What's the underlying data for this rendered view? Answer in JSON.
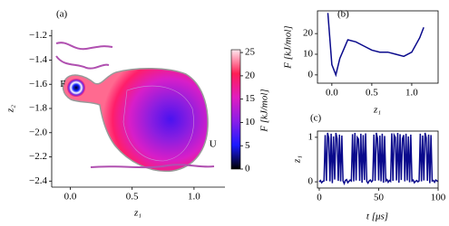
{
  "chart_data": [
    {
      "type": "contour",
      "label": "(a)",
      "xlabel": "z₁",
      "ylabel": "z₂",
      "xlim": [
        -0.15,
        1.25
      ],
      "ylim": [
        -2.45,
        -1.15
      ],
      "xticks": [
        {
          "value": 0,
          "label": "0.0"
        },
        {
          "value": 0.5,
          "label": "0.5"
        },
        {
          "value": 1,
          "label": "1.0"
        }
      ],
      "yticks": [
        {
          "value": -1.2,
          "label": "−1.2"
        },
        {
          "value": -1.4,
          "label": "−1.4"
        },
        {
          "value": -1.6,
          "label": "−1.6"
        },
        {
          "value": -1.8,
          "label": "−1.8"
        },
        {
          "value": -2.0,
          "label": "−2.0"
        },
        {
          "value": -2.2,
          "label": "−2.2"
        },
        {
          "value": -2.4,
          "label": "−2.4"
        }
      ],
      "annotations": [
        "F",
        "U"
      ],
      "colorbar": {
        "label": "F [kJ/mol]",
        "lim": [
          0,
          25.6
        ],
        "ticks": [
          0,
          5,
          10,
          15,
          20,
          25
        ]
      }
    },
    {
      "type": "line",
      "label": "(b)",
      "xlabel": "z₁",
      "ylabel": "F [kJ/mol]",
      "color": "#0a0a8c",
      "x": [
        -0.05,
        0.0,
        0.05,
        0.1,
        0.2,
        0.3,
        0.4,
        0.5,
        0.6,
        0.7,
        0.8,
        0.9,
        1.0,
        1.1,
        1.15
      ],
      "values": [
        30,
        5,
        0,
        8,
        17,
        16,
        14,
        12,
        11,
        11,
        10,
        9,
        11,
        18,
        23
      ],
      "xlim": [
        -0.18,
        1.33
      ],
      "ylim": [
        -4,
        31
      ],
      "xticks": [
        {
          "value": 0,
          "label": "0.0"
        },
        {
          "value": 0.5,
          "label": "0.5"
        },
        {
          "value": 1,
          "label": "1.0"
        }
      ],
      "yticks": [
        0,
        10,
        20
      ]
    },
    {
      "type": "line",
      "label": "(c)",
      "xlabel": "t [μs]",
      "ylabel": "z₁",
      "color": "#0a0a8c",
      "x": [
        0,
        1,
        2,
        3,
        4,
        5,
        6,
        7,
        8,
        9,
        10,
        11,
        12,
        13,
        14,
        15,
        16,
        17,
        18,
        19,
        20,
        21,
        22,
        23,
        24,
        25,
        26,
        27,
        28,
        29,
        30,
        31,
        32,
        33,
        34,
        35,
        36,
        37,
        38,
        39,
        40,
        41,
        42,
        43,
        44,
        45,
        46,
        47,
        48,
        49,
        50,
        51,
        52,
        53,
        54,
        55,
        56,
        57,
        58,
        59,
        60,
        61,
        62,
        63,
        64,
        65,
        66,
        67,
        68,
        69,
        70,
        71,
        72,
        73,
        74,
        75,
        76,
        77,
        78,
        79,
        80,
        81,
        82,
        83,
        84,
        85,
        86,
        87,
        88,
        89,
        90,
        91,
        92,
        93,
        94,
        95,
        96,
        97,
        98,
        99,
        100
      ],
      "values": [
        0,
        0.03,
        -0.02,
        0.01,
        0.02,
        1.05,
        0.02,
        1.1,
        0.98,
        0.01,
        1.08,
        -0.03,
        1.02,
        0.05,
        1.1,
        0.97,
        0.02,
        1.06,
        0.01,
        1.04,
        0.02,
        -0.04,
        0.03,
        0.05,
        -0.02,
        0.01,
        0.04,
        0.02,
        1.07,
        0.01,
        1.1,
        0.03,
        1.0,
        0.96,
        0.02,
        1.08,
        -0.02,
        1.05,
        0.04,
        1.09,
        0.01,
        -0.03,
        0.02,
        0.04,
        0.0,
        0.03,
        1.06,
        0.02,
        1.1,
        0.98,
        0.03,
        1.04,
        0.01,
        1.08,
        -0.02,
        1.03,
        0.02,
        0.05,
        -0.01,
        0.03,
        0.01,
        1.09,
        0.02,
        1.05,
        1.0,
        0.03,
        1.1,
        -0.02,
        1.07,
        0.04,
        0.97,
        1.05,
        0.01,
        1.08,
        0.03,
        1.02,
        -0.01,
        1.06,
        0.02,
        0.04,
        -0.02,
        0.01,
        0.03,
        0.0,
        0.02,
        1.08,
        0.01,
        1.04,
        0.03,
        1.1,
        0.99,
        0.02,
        1.06,
        -0.03,
        1.05,
        0.02,
        0.03,
        -0.01,
        0.04,
        0.02,
        0.01
      ],
      "xlim": [
        -1.5,
        100
      ],
      "ylim": [
        -0.14,
        1.14
      ],
      "xticks": [
        0,
        50,
        100
      ],
      "yticks": [
        0,
        1
      ]
    }
  ]
}
